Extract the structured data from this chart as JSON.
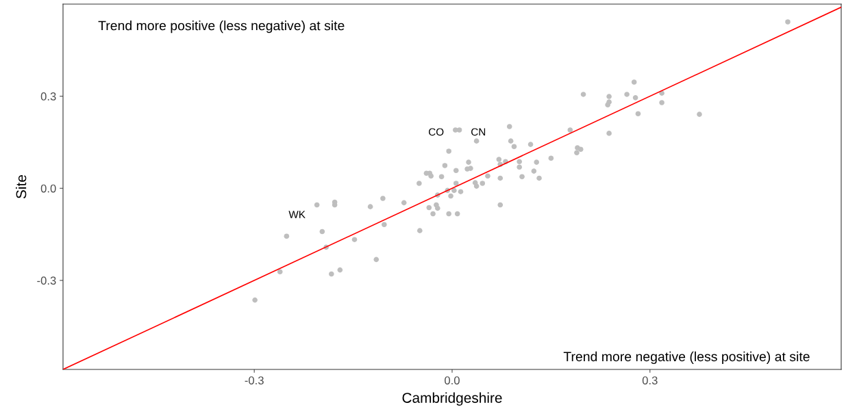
{
  "chart_data": {
    "type": "scatter",
    "xlabel": "Cambridgeshire",
    "ylabel": "Site",
    "xlim": [
      -0.59,
      0.59
    ],
    "ylim": [
      -0.59,
      0.6
    ],
    "xticks": [
      {
        "value": -0.3,
        "label": "-0.3"
      },
      {
        "value": 0,
        "label": "0.0"
      },
      {
        "value": 0.3,
        "label": "0.3"
      }
    ],
    "yticks": [
      {
        "value": -0.3,
        "label": "-0.3"
      },
      {
        "value": 0,
        "label": "0.0"
      },
      {
        "value": 0.3,
        "label": "0.3"
      }
    ],
    "grid": false,
    "legend": false,
    "marker": "circle",
    "series": [
      {
        "color": "#bebebe",
        "x": [
          0.509,
          -0.299,
          -0.261,
          -0.251,
          -0.205,
          -0.197,
          -0.191,
          -0.178,
          -0.178,
          -0.183,
          -0.17,
          -0.148,
          -0.124,
          -0.115,
          -0.105,
          -0.103,
          -0.073,
          -0.049,
          -0.05,
          -0.039,
          -0.034,
          -0.032,
          -0.035,
          -0.024,
          -0.022,
          -0.029,
          -0.005,
          0.008,
          -0.022,
          -0.007,
          -0.002,
          0.003,
          0.013,
          -0.016,
          -0.011,
          -0.005,
          0.005,
          0.011,
          0.037,
          0.006,
          0.006,
          0.023,
          0.028,
          0.025,
          0.035,
          0.037,
          0.046,
          0.054,
          0.071,
          0.081,
          0.073,
          0.073,
          0.073,
          0.087,
          0.089,
          0.094,
          0.102,
          0.102,
          0.106,
          0.119,
          0.124,
          0.128,
          0.132,
          0.15,
          0.179,
          0.19,
          0.195,
          0.189,
          0.199,
          0.238,
          0.238,
          0.236,
          0.238,
          0.265,
          0.276,
          0.278,
          0.282,
          0.318,
          0.318,
          0.375
        ],
        "values": [
          0.542,
          -0.364,
          -0.272,
          -0.156,
          -0.054,
          -0.141,
          -0.192,
          -0.045,
          -0.054,
          -0.279,
          -0.266,
          -0.167,
          -0.06,
          -0.232,
          -0.033,
          -0.118,
          -0.047,
          -0.138,
          0.016,
          0.049,
          0.049,
          0.04,
          -0.063,
          -0.054,
          -0.065,
          -0.083,
          -0.083,
          -0.083,
          -0.022,
          -0.007,
          -0.025,
          -0.007,
          -0.011,
          0.038,
          0.074,
          0.121,
          0.19,
          0.19,
          0.154,
          0.058,
          0.016,
          0.063,
          0.065,
          0.085,
          0.018,
          0.007,
          0.016,
          0.04,
          0.094,
          0.087,
          0.078,
          0.033,
          -0.054,
          0.201,
          0.154,
          0.136,
          0.087,
          0.069,
          0.038,
          0.143,
          0.056,
          0.085,
          0.033,
          0.098,
          0.19,
          0.132,
          0.127,
          0.116,
          0.306,
          0.299,
          0.281,
          0.272,
          0.179,
          0.306,
          0.346,
          0.295,
          0.243,
          0.31,
          0.279,
          0.241
        ]
      },
      {
        "type": "line",
        "color": "#ff0000",
        "line_style": "solid",
        "marker": "none",
        "x": [
          -0.59,
          0.59
        ],
        "values": [
          -0.59,
          0.59
        ]
      }
    ],
    "annotations": [
      "Trend more positive (less negative) at site",
      "Trend more negative (less positive) at site",
      {
        "text": "WK",
        "x": -0.205,
        "y": -0.054
      },
      {
        "text": "CO",
        "x": 0.005,
        "y": 0.19
      },
      {
        "text": "CN",
        "x": 0.011,
        "y": 0.19
      }
    ]
  }
}
